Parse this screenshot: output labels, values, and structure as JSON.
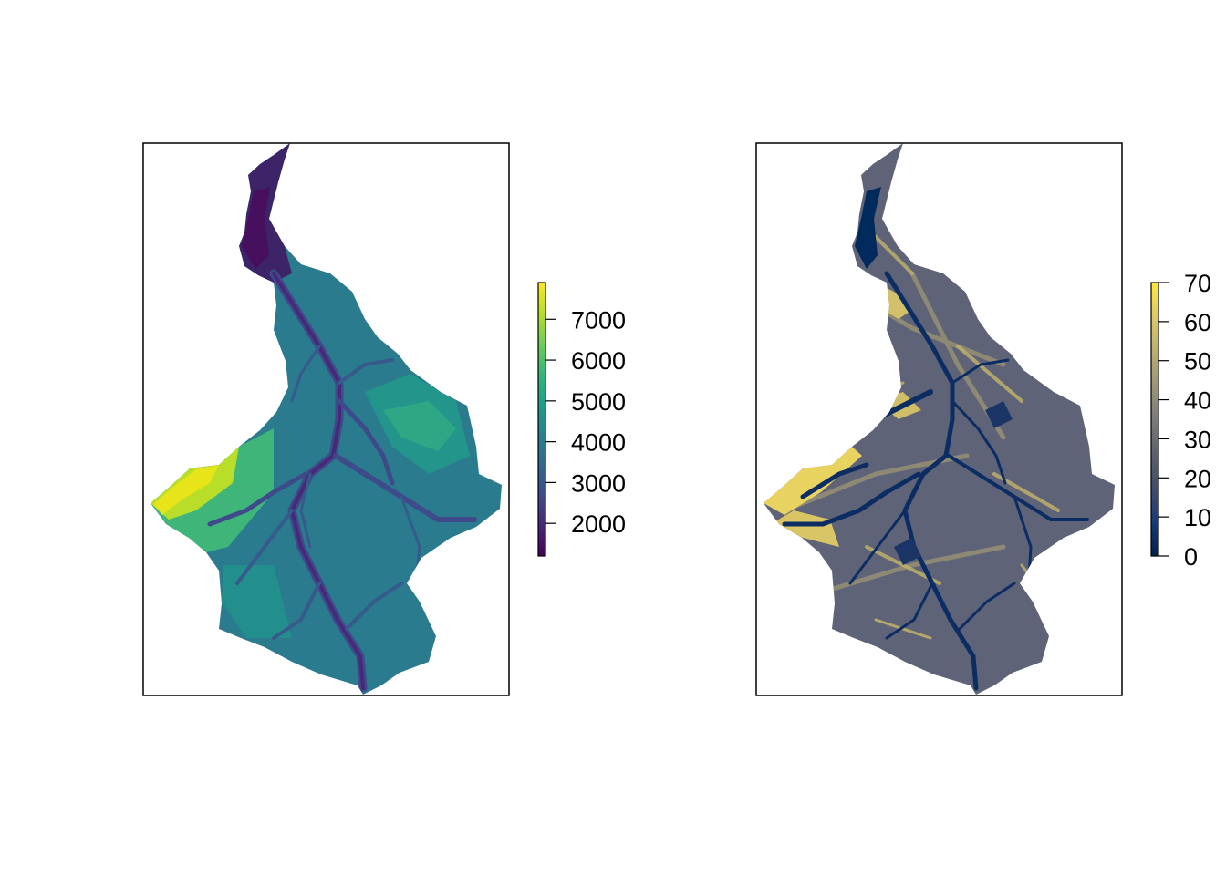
{
  "panels": [
    {
      "id": "elevation",
      "palette": [
        "#440154",
        "#482878",
        "#3e4a89",
        "#31688e",
        "#26828e",
        "#1f9e89",
        "#35b779",
        "#6ece58",
        "#b5de2b",
        "#fde725"
      ],
      "legend": {
        "min": 1200,
        "max": 7900,
        "ticks": [
          {
            "value": 2000,
            "label": "2000"
          },
          {
            "value": 3000,
            "label": "3000"
          },
          {
            "value": 4000,
            "label": "4000"
          },
          {
            "value": 5000,
            "label": "5000"
          },
          {
            "value": 6000,
            "label": "6000"
          },
          {
            "value": 7000,
            "label": "7000"
          }
        ]
      }
    },
    {
      "id": "slope",
      "palette": [
        "#00204d",
        "#173b7a",
        "#414d6b",
        "#5d616e",
        "#7c7b78",
        "#9c9677",
        "#bcaf6f",
        "#dfc962",
        "#fee838"
      ],
      "legend": {
        "min": 0,
        "max": 70,
        "ticks": [
          {
            "value": 0,
            "label": "0"
          },
          {
            "value": 10,
            "label": "10"
          },
          {
            "value": 20,
            "label": "20"
          },
          {
            "value": 30,
            "label": "30"
          },
          {
            "value": 40,
            "label": "40"
          },
          {
            "value": 50,
            "label": "50"
          },
          {
            "value": 60,
            "label": "60"
          },
          {
            "value": 70,
            "label": "70"
          }
        ]
      }
    }
  ]
}
